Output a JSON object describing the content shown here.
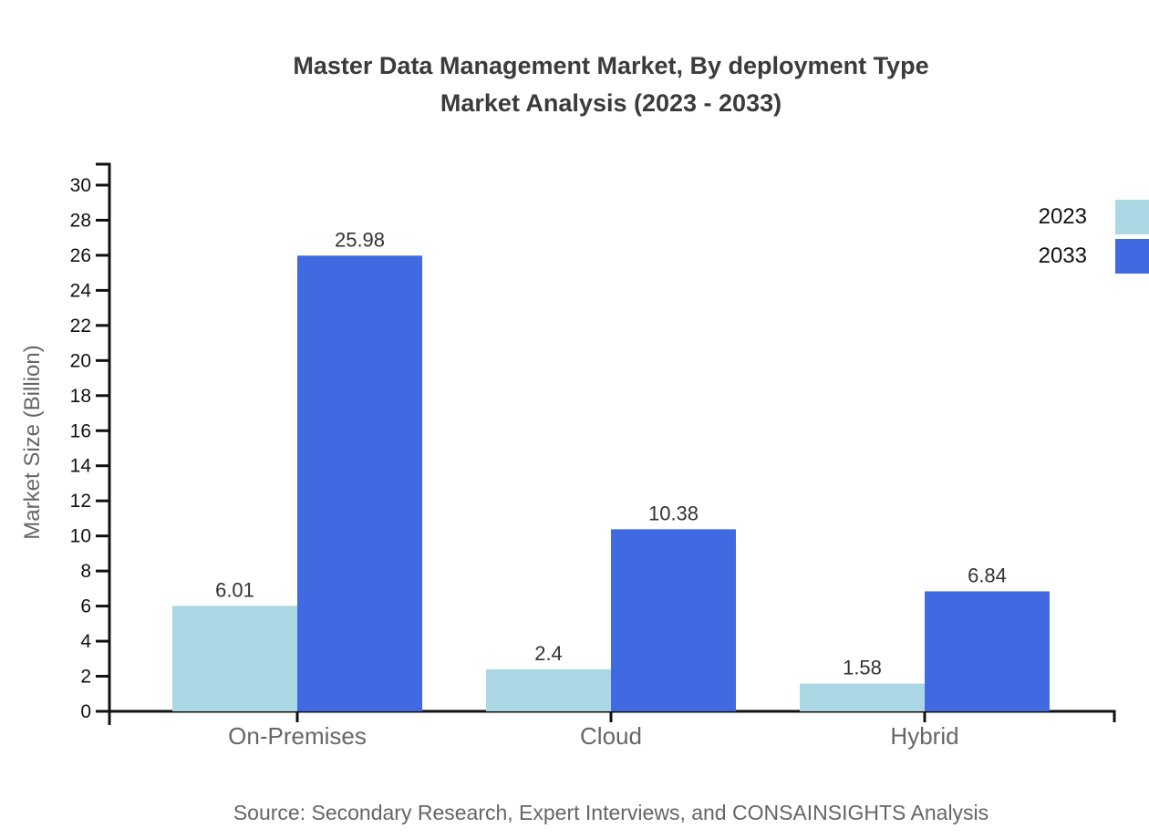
{
  "title": {
    "line1": "Master Data Management Market, By deployment Type",
    "line2": "Market Analysis (2023 - 2033)"
  },
  "footer": {
    "source": "Source: Secondary Research, Expert Interviews, and CONSAINSIGHTS Analysis"
  },
  "chart_data": {
    "type": "bar",
    "title": "Master Data Management Market, By deployment Type Market Analysis (2023 - 2033)",
    "categories": [
      "On-Premises",
      "Cloud",
      "Hybrid"
    ],
    "series": [
      {
        "name": "2023",
        "color": "#aad7e3",
        "values": [
          6.01,
          2.4,
          1.58
        ],
        "labels": [
          "6.01",
          "2.4",
          "1.58"
        ]
      },
      {
        "name": "2033",
        "color": "#4169e1",
        "values": [
          25.98,
          10.38,
          6.84
        ],
        "labels": [
          "25.98",
          "10.38",
          "6.84"
        ]
      }
    ],
    "xlabel": "",
    "ylabel": "Market Size (Billion)",
    "ylim": [
      0,
      30
    ],
    "yticks": [
      0,
      2,
      4,
      6,
      8,
      10,
      12,
      14,
      16,
      18,
      20,
      22,
      24,
      26,
      28,
      30
    ],
    "grid": false,
    "legend_position": "right",
    "axis_color": "#111111",
    "tick_label_color": "#111111",
    "category_label_color": "#666666",
    "value_label_color": "#333333"
  }
}
